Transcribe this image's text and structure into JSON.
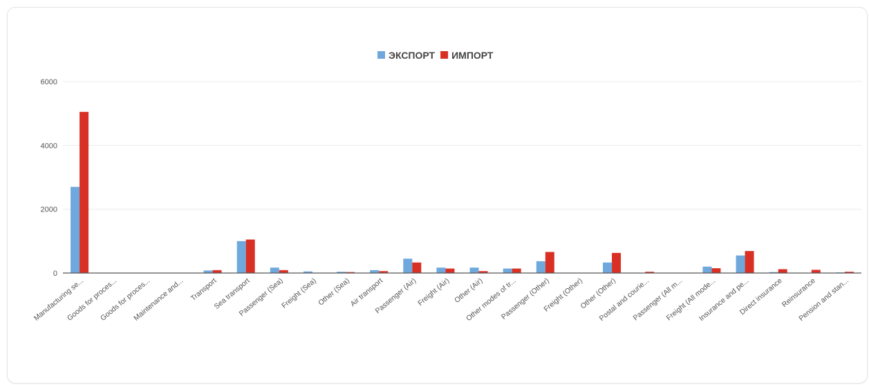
{
  "chart_data": {
    "type": "bar",
    "title": "",
    "xlabel": "",
    "ylabel": "",
    "ylim": [
      0,
      6000
    ],
    "yticks": [
      0,
      2000,
      4000,
      6000
    ],
    "grid": true,
    "legend_position": "top-center",
    "categories": [
      "Manufacturing se...",
      "Goods for proces...",
      "Goods for proces...",
      "Maintenance and...",
      "Transport",
      "Sea transport",
      "Passenger  (Sea)",
      "Freight  (Sea)",
      "Other  (Sea)",
      "Air transport",
      "Passenger (Air)",
      "Freight (Air)",
      "Other (Air)",
      "Other modes of tr...",
      "Passenger (Other)",
      "Freight (Other)",
      "Other (Other)",
      "Postal and courie...",
      "Passenger (All m...",
      "Freight (All mode...",
      "Insurance and pe...",
      "Direct insurance",
      "Reinsurance",
      "Pension and stan..."
    ],
    "series": [
      {
        "name": "ЭКСПОРТ",
        "color": "#6fa8dc",
        "values": [
          2700,
          0,
          0,
          0,
          80,
          1000,
          170,
          50,
          40,
          90,
          450,
          170,
          170,
          140,
          370,
          0,
          330,
          0,
          0,
          200,
          550,
          30,
          0,
          20
        ]
      },
      {
        "name": "ИМПОРТ",
        "color": "#d93025",
        "values": [
          5050,
          0,
          0,
          0,
          90,
          1050,
          90,
          10,
          30,
          60,
          330,
          140,
          60,
          140,
          660,
          0,
          630,
          40,
          0,
          150,
          690,
          120,
          100,
          40
        ]
      }
    ]
  }
}
